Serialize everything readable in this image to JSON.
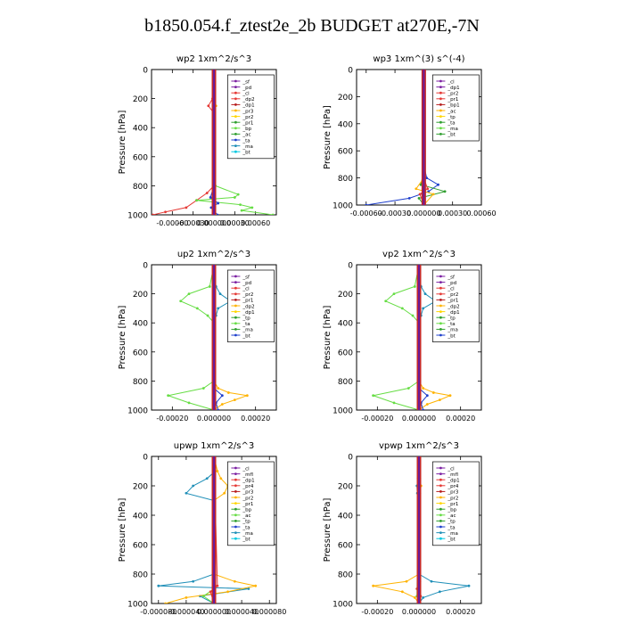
{
  "title": "b1850.054.f_ztest2e_2b  BUDGET at270E,-7N",
  "colors": {
    "purple": "#7b1fa2",
    "red": "#e53935",
    "orange": "#ffb300",
    "yellow": "#ffd600",
    "green": "#2e9e2e",
    "lightgreen": "#66dd44",
    "blue": "#1e3fcc",
    "teal": "#1f8fb8",
    "cyan": "#00c8e0",
    "gray": "#777777",
    "darkred": "#b71c1c"
  },
  "chart_data": [
    {
      "type": "line",
      "title": "wp2  1xm^2/s^3",
      "ylabel": "Pressure [hPa]",
      "ylim": [
        1000,
        0
      ],
      "xlim": [
        -0.0009,
        0.0009
      ],
      "xticks": [
        -0.0006,
        -0.0003,
        0.0,
        0.0003,
        0.0006
      ],
      "xtick_labels": [
        "-0.00060",
        "-0.00030",
        "0.000000",
        "0.00030",
        "0.00060"
      ],
      "yticks": [
        0,
        200,
        400,
        600,
        800,
        1000
      ],
      "legend": [
        "_sf",
        "_pd",
        "_cl",
        "_dp2",
        "_dp1",
        "_pr3",
        "_pr2",
        "_pr1",
        "_bp",
        "_ac",
        "_ta",
        "_ma",
        "_bt"
      ],
      "series": [
        {
          "name": "_pd",
          "color": "purple",
          "y": [
            0,
            200,
            400,
            600,
            800,
            860,
            900,
            950,
            1000
          ],
          "x": [
            0,
            0,
            0,
            0,
            0,
            0,
            0,
            0,
            0
          ]
        },
        {
          "name": "_cl",
          "color": "red",
          "y": [
            0,
            150,
            200,
            250,
            300,
            350,
            800,
            850,
            900,
            950,
            980,
            1000
          ],
          "x": [
            0,
            0,
            -2e-05,
            -8e-05,
            0,
            0,
            0,
            -0.0001,
            -0.00025,
            -0.0004,
            -0.0007,
            -0.00088
          ]
        },
        {
          "name": "_pr1",
          "color": "lightgreen",
          "y": [
            0,
            600,
            800,
            860,
            880,
            900,
            930,
            950,
            970,
            1000
          ],
          "x": [
            0,
            0,
            2e-05,
            0.00035,
            0.0003,
            -0.00025,
            0.00038,
            0.00055,
            0.0004,
            0.00085
          ]
        },
        {
          "name": "_ac",
          "color": "blue",
          "y": [
            0,
            800,
            880,
            920,
            950,
            1000
          ],
          "x": [
            0,
            0,
            -5e-05,
            6e-05,
            -4e-05,
            5e-05
          ]
        },
        {
          "name": "_pr2",
          "color": "orange",
          "y": [
            0,
            200,
            250,
            300,
            800,
            1000
          ],
          "x": [
            0,
            0,
            3e-05,
            0,
            0,
            2e-05
          ]
        }
      ]
    },
    {
      "type": "line",
      "title": "wp3  1xm^(3) s^(-4)",
      "ylabel": "Pressure [hPa]",
      "ylim": [
        1000,
        0
      ],
      "xlim": [
        -0.0007,
        0.0006
      ],
      "xticks": [
        -0.0006,
        -0.0003,
        0.0,
        0.0003,
        0.0006
      ],
      "xtick_labels": [
        "-0.00060",
        "-0.00030",
        "0.000000",
        "0.00030",
        "0.00060"
      ],
      "yticks": [
        0,
        200,
        400,
        600,
        800,
        1000
      ],
      "legend": [
        "_cl",
        "_dp1",
        "_pr2",
        "_pr1",
        "_bp1",
        "_ac",
        "_tp",
        "_ta",
        "_ma",
        "_bt"
      ],
      "series": [
        {
          "name": "_ac",
          "color": "blue",
          "y": [
            0,
            700,
            800,
            850,
            900,
            950,
            1000
          ],
          "x": [
            0,
            0,
            3e-05,
            0.00015,
            5e-05,
            -0.00015,
            -0.0006
          ]
        },
        {
          "name": "_bp1",
          "color": "green",
          "y": [
            0,
            750,
            850,
            900,
            950,
            1000
          ],
          "x": [
            0,
            0,
            -3e-05,
            0.00022,
            -5e-05,
            0
          ]
        },
        {
          "name": "_pr2",
          "color": "orange",
          "y": [
            0,
            800,
            880,
            920,
            1000
          ],
          "x": [
            0,
            0,
            -8e-05,
            0.0001,
            0
          ]
        },
        {
          "name": "_cl",
          "color": "red",
          "y": [
            0,
            800,
            880,
            920,
            1000
          ],
          "x": [
            0,
            0,
            4e-05,
            -4e-05,
            0
          ]
        },
        {
          "name": "_bt",
          "color": "cyan",
          "y": [
            0,
            1000
          ],
          "x": [
            0,
            0
          ]
        }
      ]
    },
    {
      "type": "line",
      "title": "up2  1xm^2/s^3",
      "ylabel": "Pressure [hPa]",
      "ylim": [
        1000,
        0
      ],
      "xlim": [
        -0.0003,
        0.0003
      ],
      "xticks": [
        -0.0002,
        0.0,
        0.0002
      ],
      "xtick_labels": [
        "-0.00020",
        "0.000000",
        "0.00020"
      ],
      "yticks": [
        0,
        200,
        400,
        600,
        800,
        1000
      ],
      "legend": [
        "_sf",
        "_pd",
        "_cl",
        "_pr2",
        "_pr1",
        "_dp2",
        "_dp1",
        "_tp",
        "_ta",
        "_ma",
        "_bt"
      ],
      "series": [
        {
          "name": "_dp1",
          "color": "lightgreen",
          "y": [
            0,
            150,
            200,
            250,
            300,
            350,
            400,
            800,
            850,
            900,
            950,
            1000
          ],
          "x": [
            0,
            -2e-05,
            -0.00012,
            -0.00016,
            -8e-05,
            -3e-05,
            0,
            0,
            -5e-05,
            -0.00022,
            -0.00012,
            0
          ]
        },
        {
          "name": "_tp",
          "color": "teal",
          "y": [
            0,
            150,
            200,
            250,
            300,
            350,
            400
          ],
          "x": [
            0,
            1e-05,
            3e-05,
            8e-05,
            2e-05,
            1e-05,
            0
          ]
        },
        {
          "name": "_pr2",
          "color": "orange",
          "y": [
            0,
            800,
            850,
            880,
            900,
            930,
            960,
            1000
          ],
          "x": [
            0,
            0,
            2e-05,
            7e-05,
            0.00016,
            0.0001,
            4e-05,
            0
          ]
        },
        {
          "name": "_ac",
          "color": "blue",
          "y": [
            0,
            850,
            900,
            950,
            1000
          ],
          "x": [
            0,
            0,
            4e-05,
            1e-05,
            2e-05
          ]
        }
      ]
    },
    {
      "type": "line",
      "title": "vp2  1xm^2/s^3",
      "ylabel": "Pressure [hPa]",
      "ylim": [
        1000,
        0
      ],
      "xlim": [
        -0.0003,
        0.0003
      ],
      "xticks": [
        -0.0002,
        0.0,
        0.0002
      ],
      "xtick_labels": [
        "-0.00020",
        "0.000000",
        "0.00020"
      ],
      "yticks": [
        0,
        200,
        400,
        600,
        800,
        1000
      ],
      "legend": [
        "_sf",
        "_pd",
        "_cl",
        "_pr2",
        "_pr1",
        "_dp2",
        "_dp1",
        "_tp",
        "_ta",
        "_ma",
        "_bt"
      ],
      "series": [
        {
          "name": "_dp1",
          "color": "lightgreen",
          "y": [
            0,
            150,
            200,
            250,
            300,
            350,
            400,
            800,
            850,
            900,
            950,
            1000
          ],
          "x": [
            0,
            -2e-05,
            -0.00012,
            -0.00016,
            -8e-05,
            -3e-05,
            0,
            0,
            -5e-05,
            -0.00022,
            -0.00012,
            0
          ]
        },
        {
          "name": "_tp",
          "color": "teal",
          "y": [
            0,
            150,
            200,
            250,
            300,
            350,
            400
          ],
          "x": [
            0,
            1e-05,
            3e-05,
            8e-05,
            2e-05,
            1e-05,
            0
          ]
        },
        {
          "name": "_pr2",
          "color": "orange",
          "y": [
            0,
            800,
            850,
            880,
            900,
            930,
            960,
            1000
          ],
          "x": [
            0,
            0,
            2e-05,
            7e-05,
            0.00015,
            0.0001,
            4e-05,
            0
          ]
        },
        {
          "name": "_ac",
          "color": "blue",
          "y": [
            0,
            850,
            900,
            950,
            1000
          ],
          "x": [
            0,
            0,
            4e-05,
            1e-05,
            2e-05
          ]
        }
      ]
    },
    {
      "type": "line",
      "title": "upwp  1xm^2/s^3",
      "ylabel": "Pressure [hPa]",
      "ylim": [
        1000,
        0
      ],
      "xlim": [
        -9e-05,
        9e-05
      ],
      "xticks": [
        -8e-05,
        -4e-05,
        0.0,
        4e-05,
        8e-05
      ],
      "xtick_labels": [
        "-0.000080",
        "-0.000040",
        "0.000000",
        "0.000040",
        "0.000080"
      ],
      "yticks": [
        0,
        200,
        400,
        600,
        800,
        1000
      ],
      "legend": [
        "_cl",
        "_mfl",
        "_dp1",
        "_pr4",
        "_pr3",
        "_pr2",
        "_pr1",
        "_bp",
        "_ac",
        "_tp",
        "_ta",
        "_ma",
        "_bt"
      ],
      "series": [
        {
          "name": "_tp",
          "color": "teal",
          "y": [
            0,
            100,
            150,
            200,
            250,
            300,
            800,
            850,
            880,
            900,
            950,
            1000
          ],
          "x": [
            0,
            2e-06,
            -1e-05,
            -3e-05,
            -4e-05,
            0,
            0,
            -3e-05,
            -8e-05,
            5e-05,
            -2e-05,
            0
          ]
        },
        {
          "name": "_pr2",
          "color": "orange",
          "y": [
            0,
            100,
            150,
            200,
            250,
            300,
            800,
            850,
            880,
            920,
            960,
            1000
          ],
          "x": [
            0,
            5e-06,
            1e-05,
            2e-05,
            1.5e-05,
            0,
            0,
            3e-05,
            6e-05,
            2e-05,
            -4e-05,
            -7e-05
          ]
        },
        {
          "name": "_pr1",
          "color": "lightgreen",
          "y": [
            0,
            900,
            950,
            1000
          ],
          "x": [
            0,
            0,
            -1.5e-05,
            0
          ]
        },
        {
          "name": "_cl",
          "color": "red",
          "y": [
            0,
            880,
            920,
            1000
          ],
          "x": [
            0,
            5e-06,
            -5e-06,
            0
          ]
        }
      ]
    },
    {
      "type": "line",
      "title": "vpwp  1xm^2/s^3",
      "ylabel": "Pressure [hPa]",
      "ylim": [
        1000,
        0
      ],
      "xlim": [
        -0.0003,
        0.0003
      ],
      "xticks": [
        -0.0002,
        0.0,
        0.0002
      ],
      "xtick_labels": [
        "-0.00020",
        "0.000000",
        "0.00020"
      ],
      "yticks": [
        0,
        200,
        400,
        600,
        800,
        1000
      ],
      "legend": [
        "_cl",
        "_mfl",
        "_dp1",
        "_pr4",
        "_pr3",
        "_pr2",
        "_pr1",
        "_bp",
        "_ac",
        "_tp",
        "_ta",
        "_ma",
        "_bt"
      ],
      "series": [
        {
          "name": "_tp",
          "color": "teal",
          "y": [
            0,
            150,
            200,
            250,
            300,
            800,
            850,
            880,
            920,
            960,
            1000
          ],
          "x": [
            0,
            -5e-06,
            -1e-05,
            -8e-06,
            0,
            0,
            6e-05,
            0.00024,
            0.0001,
            2e-05,
            0
          ]
        },
        {
          "name": "_pr2",
          "color": "orange",
          "y": [
            0,
            150,
            200,
            250,
            300,
            800,
            850,
            880,
            920,
            960,
            1000
          ],
          "x": [
            0,
            5e-06,
            1e-05,
            5e-06,
            0,
            0,
            -6e-05,
            -0.00022,
            -8e-05,
            -2e-05,
            0
          ]
        },
        {
          "name": "_cl",
          "color": "red",
          "y": [
            0,
            850,
            900,
            950,
            1000
          ],
          "x": [
            0,
            5e-06,
            -1e-05,
            8e-06,
            0
          ]
        },
        {
          "name": "_pr1",
          "color": "lightgreen",
          "y": [
            0,
            950,
            1000
          ],
          "x": [
            0,
            -1e-05,
            0
          ]
        }
      ]
    }
  ]
}
